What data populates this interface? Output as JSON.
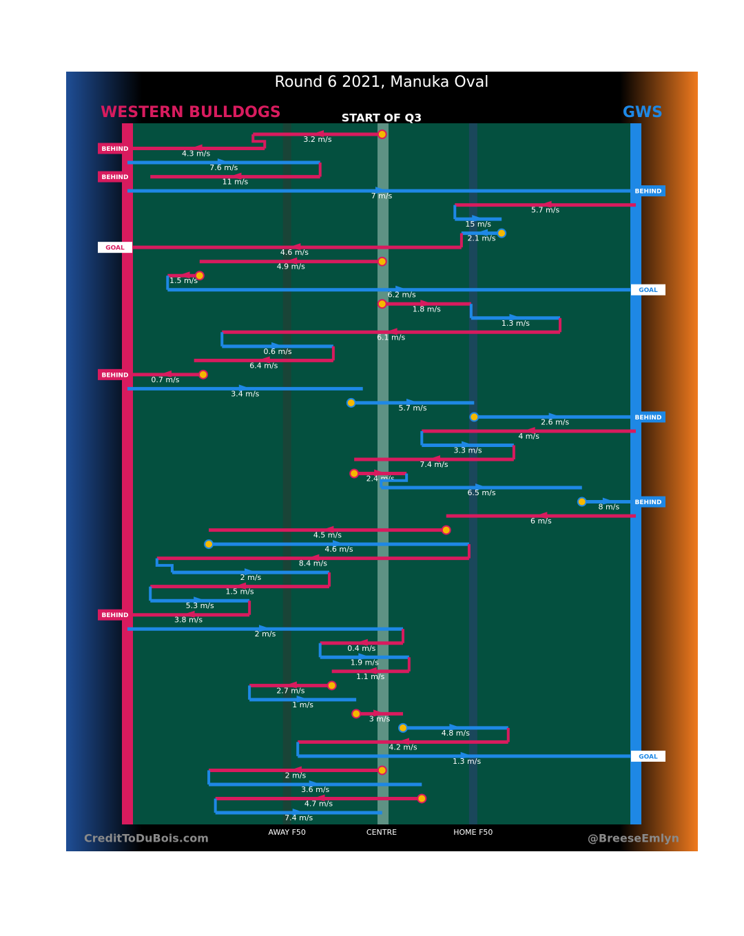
{
  "chart_data": {
    "type": "possession-chain",
    "title": "Round 6 2021, Manuka Oval",
    "subtitle": "START OF Q3",
    "teams": [
      {
        "name": "WESTERN BULLDOGS",
        "color": "#d81b5e"
      },
      {
        "name": "GWS",
        "color": "#1e88e5"
      }
    ],
    "credits": [
      "CreditToDuBois.com",
      "@BreeseEmlyn"
    ],
    "xlim": [
      0,
      100
    ],
    "xticks": [
      {
        "value": 31.4,
        "label": "AWAY F50"
      },
      {
        "value": 50,
        "label": "CENTRE"
      },
      {
        "value": 68,
        "label": "HOME F50"
      }
    ],
    "segments": [
      {
        "team": 0,
        "from": 50.1,
        "to": 24.7,
        "label": "3.2 m/s",
        "stop": true
      },
      {
        "team": 0,
        "from": 27.0,
        "to": 0,
        "label": "4.3 m/s",
        "result": "BEHIND"
      },
      {
        "team": 1,
        "from": 0,
        "to": 37.9,
        "label": "7.6 m/s"
      },
      {
        "team": 0,
        "from": 37.9,
        "to": 4.5,
        "label": "11 m/s",
        "result": "BEHIND"
      },
      {
        "team": 1,
        "from": 0,
        "to": 100,
        "label": "7 m/s",
        "result": "BEHIND"
      },
      {
        "team": 0,
        "from": 100,
        "to": 64.4,
        "label": "5.7 m/s"
      },
      {
        "team": 1,
        "from": 64.4,
        "to": 73.6,
        "label": "15 m/s"
      },
      {
        "team": 1,
        "from": 73.6,
        "to": 65.7,
        "label": "2.1 m/s",
        "stop": true
      },
      {
        "team": 0,
        "from": 65.7,
        "to": 0,
        "label": "4.6 m/s",
        "result": "GOAL"
      },
      {
        "team": 0,
        "from": 50.1,
        "to": 14.2,
        "label": "4.9 m/s",
        "stop": true
      },
      {
        "team": 0,
        "from": 14.2,
        "to": 7.9,
        "label": "1.5 m/s",
        "stop": true
      },
      {
        "team": 1,
        "from": 7.9,
        "to": 100,
        "label": "6.2 m/s",
        "result": "GOAL"
      },
      {
        "team": 0,
        "from": 50.1,
        "to": 67.6,
        "label": "1.8 m/s",
        "stop": true
      },
      {
        "team": 1,
        "from": 67.6,
        "to": 85.1,
        "label": "1.3 m/s"
      },
      {
        "team": 0,
        "from": 85.1,
        "to": 18.6,
        "label": "6.1 m/s"
      },
      {
        "team": 1,
        "from": 18.6,
        "to": 40.5,
        "label": "0.6 m/s"
      },
      {
        "team": 0,
        "from": 40.5,
        "to": 13.1,
        "label": "6.4 m/s"
      },
      {
        "team": 0,
        "from": 14.9,
        "to": 0,
        "label": "0.7 m/s",
        "stop": true,
        "result": "BEHIND"
      },
      {
        "team": 1,
        "from": 0,
        "to": 46.3,
        "label": "3.4 m/s"
      },
      {
        "team": 1,
        "from": 44.0,
        "to": 68.2,
        "label": "5.7 m/s",
        "stop": true
      },
      {
        "team": 1,
        "from": 68.2,
        "to": 100,
        "label": "2.6 m/s",
        "stop": true,
        "result": "BEHIND"
      },
      {
        "team": 0,
        "from": 100,
        "to": 57.9,
        "label": "4 m/s"
      },
      {
        "team": 1,
        "from": 57.9,
        "to": 76.0,
        "label": "3.3 m/s"
      },
      {
        "team": 0,
        "from": 76.0,
        "to": 44.6,
        "label": "7.4 m/s"
      },
      {
        "team": 0,
        "from": 44.6,
        "to": 54.9,
        "label": "2.4 m/s",
        "stop": true
      },
      {
        "team": 1,
        "from": 49.9,
        "to": 89.4,
        "label": "6.5 m/s"
      },
      {
        "team": 1,
        "from": 89.4,
        "to": 100,
        "label": "8 m/s",
        "stop": true,
        "result": "BEHIND"
      },
      {
        "team": 0,
        "from": 100,
        "to": 62.7,
        "label": "6 m/s"
      },
      {
        "team": 0,
        "from": 62.7,
        "to": 16.0,
        "label": "4.5 m/s",
        "stop": true
      },
      {
        "team": 1,
        "from": 16.0,
        "to": 67.2,
        "label": "4.6 m/s",
        "stop": true
      },
      {
        "team": 0,
        "from": 67.2,
        "to": 5.8,
        "label": "8.4 m/s"
      },
      {
        "team": 1,
        "from": 8.8,
        "to": 39.7,
        "label": "2 m/s"
      },
      {
        "team": 0,
        "from": 39.7,
        "to": 4.5,
        "label": "1.5 m/s"
      },
      {
        "team": 1,
        "from": 4.5,
        "to": 24.0,
        "label": "5.3 m/s"
      },
      {
        "team": 0,
        "from": 24.0,
        "to": 0,
        "label": "3.8 m/s",
        "result": "BEHIND"
      },
      {
        "team": 1,
        "from": 0,
        "to": 54.2,
        "label": "2 m/s"
      },
      {
        "team": 0,
        "from": 54.2,
        "to": 37.9,
        "label": "0.4 m/s"
      },
      {
        "team": 1,
        "from": 37.9,
        "to": 55.4,
        "label": "1.9 m/s"
      },
      {
        "team": 0,
        "from": 55.4,
        "to": 40.2,
        "label": "1.1 m/s"
      },
      {
        "team": 0,
        "from": 40.2,
        "to": 24.0,
        "label": "2.7 m/s",
        "stop": true
      },
      {
        "team": 1,
        "from": 24.0,
        "to": 45.0,
        "label": "1 m/s"
      },
      {
        "team": 0,
        "from": 45.0,
        "to": 54.2,
        "label": "3 m/s",
        "stop": true
      },
      {
        "team": 1,
        "from": 54.2,
        "to": 74.9,
        "label": "4.8 m/s",
        "stop": true
      },
      {
        "team": 0,
        "from": 74.9,
        "to": 33.5,
        "label": "4.2 m/s"
      },
      {
        "team": 1,
        "from": 33.5,
        "to": 100,
        "label": "1.3 m/s",
        "result": "GOAL"
      },
      {
        "team": 0,
        "from": 50.1,
        "to": 16.0,
        "label": "2 m/s",
        "stop": true
      },
      {
        "team": 1,
        "from": 16.0,
        "to": 57.9,
        "label": "3.6 m/s"
      },
      {
        "team": 0,
        "from": 57.9,
        "to": 17.3,
        "label": "4.7 m/s",
        "stop": true
      },
      {
        "team": 1,
        "from": 17.3,
        "to": 50.1,
        "label": "7.4 m/s"
      }
    ]
  }
}
